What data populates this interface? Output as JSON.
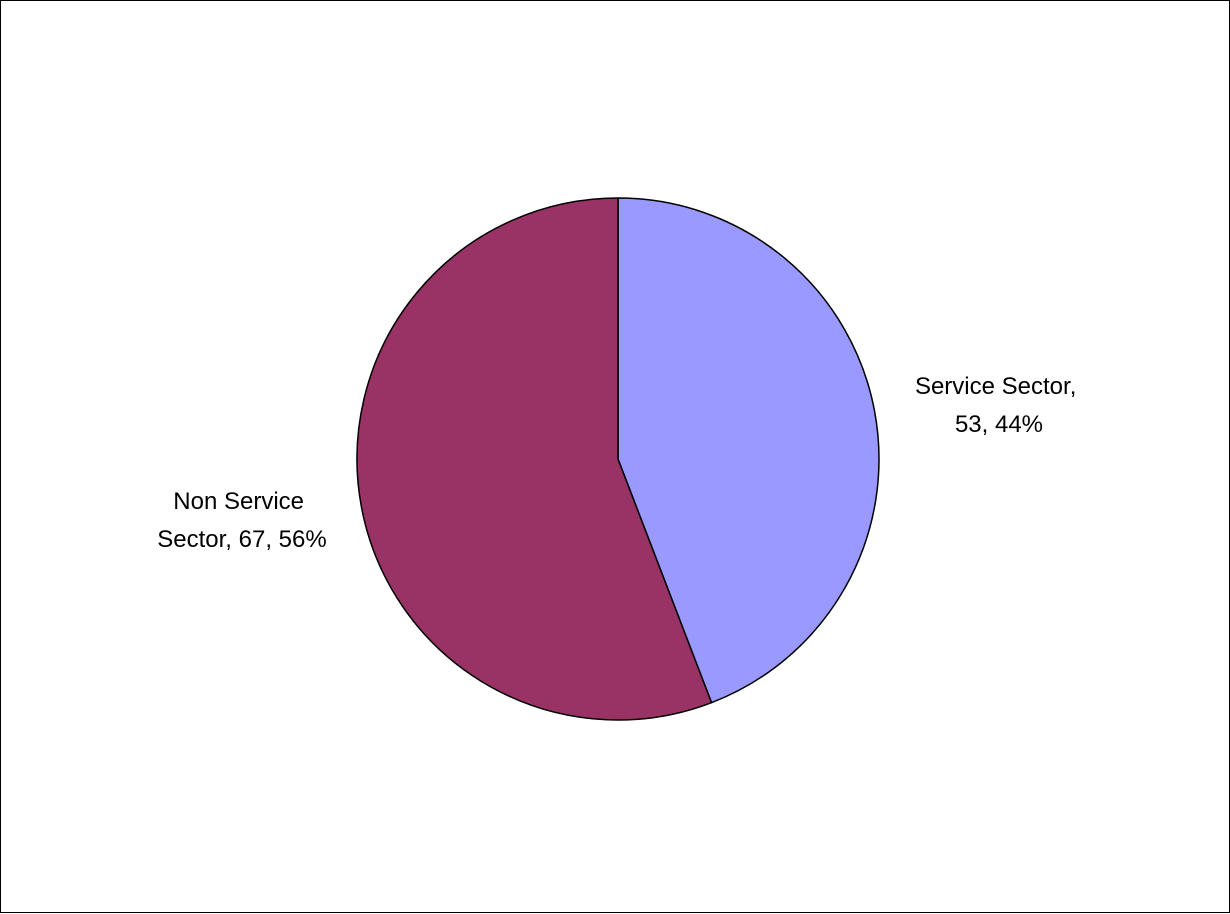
{
  "chart_data": {
    "type": "pie",
    "title": "",
    "slices": [
      {
        "name": "Service Sector",
        "value": 53,
        "percent": 44,
        "color": "#9999ff",
        "label_lines": [
          "Service Sector,",
          "53, 44%"
        ]
      },
      {
        "name": "Non Service Sector",
        "value": 67,
        "percent": 56,
        "color": "#993366",
        "label_lines": [
          "Non Service",
          "Sector, 67, 56%"
        ]
      }
    ],
    "start_angle": "12 o'clock",
    "direction": "clockwise",
    "legend": "none"
  }
}
